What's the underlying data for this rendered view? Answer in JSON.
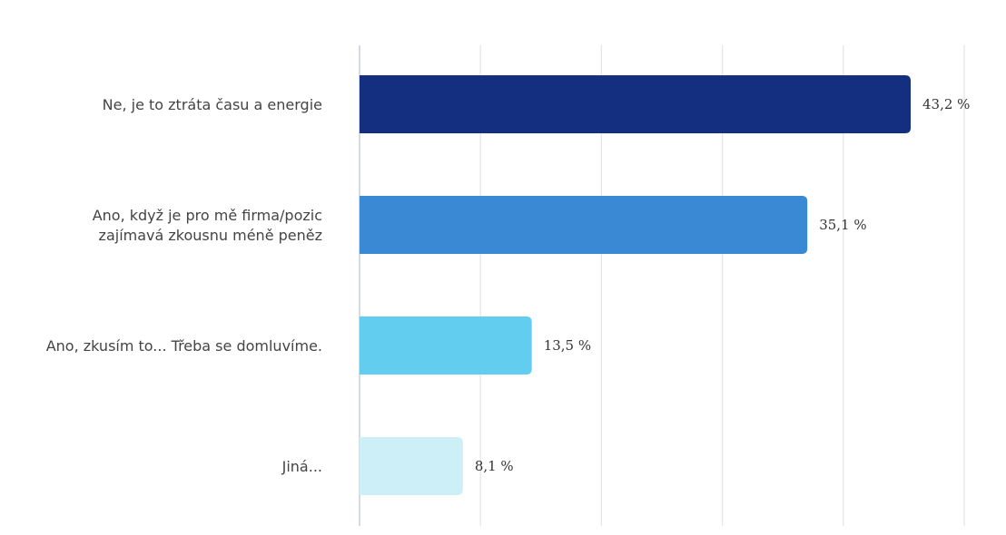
{
  "chart_data": {
    "type": "bar",
    "orientation": "horizontal",
    "title": "",
    "xlabel": "",
    "ylabel": "",
    "xlim": [
      0,
      50
    ],
    "grid": true,
    "legend": "none",
    "categories": [
      [
        "Ne, je to ztráta času a energie"
      ],
      [
        "Ano, když je pro mě firma/pozic",
        "zajímavá zkousnu méně peněz"
      ],
      [
        "Ano, zkusím to... Třeba se domluvíme."
      ],
      [
        "Jiná..."
      ]
    ],
    "values": [
      43.2,
      35.1,
      13.5,
      8.1
    ],
    "value_labels": [
      "43,2 %",
      "35,1 %",
      "13,5 %",
      "8,1 %"
    ],
    "colors": [
      "#142f80",
      "#3a89d4",
      "#62cdee",
      "#cdf0f8"
    ]
  }
}
